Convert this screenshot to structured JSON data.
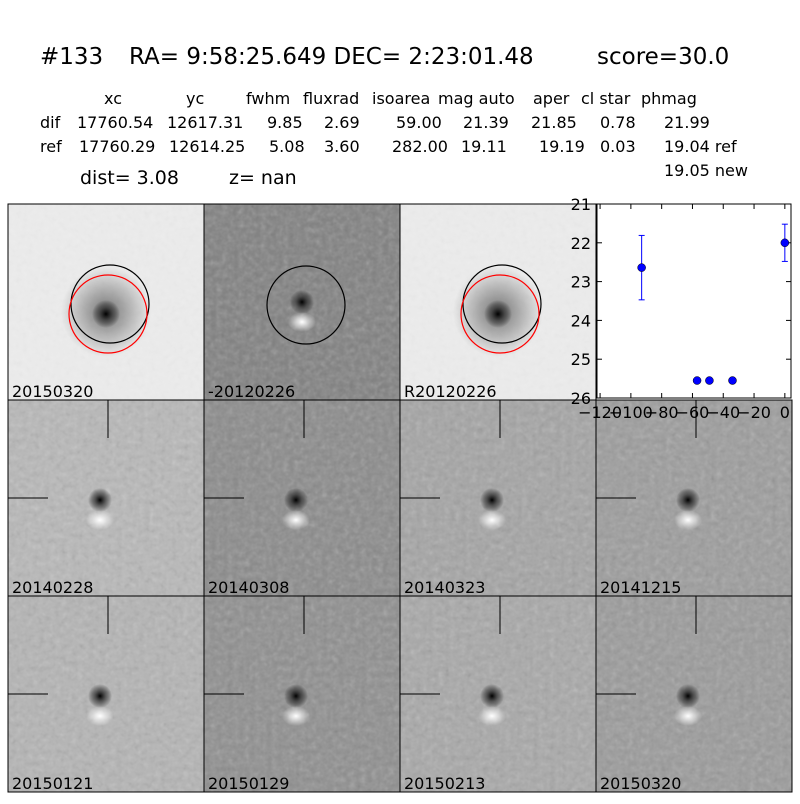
{
  "header": {
    "id": "#133",
    "coords": "RA= 9:58:25.649 DEC= 2:23:01.48",
    "score": "score=30.0"
  },
  "table": {
    "columns": [
      "xc",
      "yc",
      "fwhm",
      "fluxrad",
      "isoarea",
      "mag auto",
      "aper",
      "cl star",
      "phmag"
    ],
    "rows": [
      [
        "dif",
        "17760.54",
        "12617.31",
        "9.85",
        "2.69",
        "59.00",
        "21.39",
        "21.85",
        "0.78",
        "21.99"
      ],
      [
        "ref",
        "17760.29",
        "12614.25",
        "5.08",
        "3.60",
        "282.00",
        "19.11",
        "19.19",
        "0.03",
        "19.04 ref"
      ]
    ],
    "extra": "19.05 new"
  },
  "dist": "dist=  3.08",
  "z": "z=   nan",
  "panels": [
    {
      "label": "20150320"
    },
    {
      "label": "-20120226"
    },
    {
      "label": "R20120226"
    },
    {
      "label": "20140228"
    },
    {
      "label": "20140308"
    },
    {
      "label": "20140323"
    },
    {
      "label": "20141215"
    },
    {
      "label": "20150121"
    },
    {
      "label": "20150129"
    },
    {
      "label": "20150213"
    },
    {
      "label": "20150320",
      "color": "#ff0000"
    }
  ],
  "chart_data": {
    "type": "scatter",
    "x": [
      -93,
      -57,
      -49,
      -34,
      0
    ],
    "values": [
      22.64,
      25.55,
      25.55,
      25.55,
      22.0
    ],
    "errors": [
      0.83,
      null,
      null,
      null,
      0.48
    ],
    "color": "#0000ff",
    "xlim": [
      -122,
      4
    ],
    "ylim": [
      26,
      21
    ],
    "xticks": [
      {
        "value": -120,
        "label": "−120"
      },
      {
        "value": -100,
        "label": "−100"
      },
      {
        "value": -80,
        "label": "−80"
      },
      {
        "value": -60,
        "label": "−60"
      },
      {
        "value": -40,
        "label": "−40"
      },
      {
        "value": -20,
        "label": "−20"
      },
      0
    ],
    "yticks": [
      21,
      22,
      23,
      24,
      25,
      26
    ]
  }
}
